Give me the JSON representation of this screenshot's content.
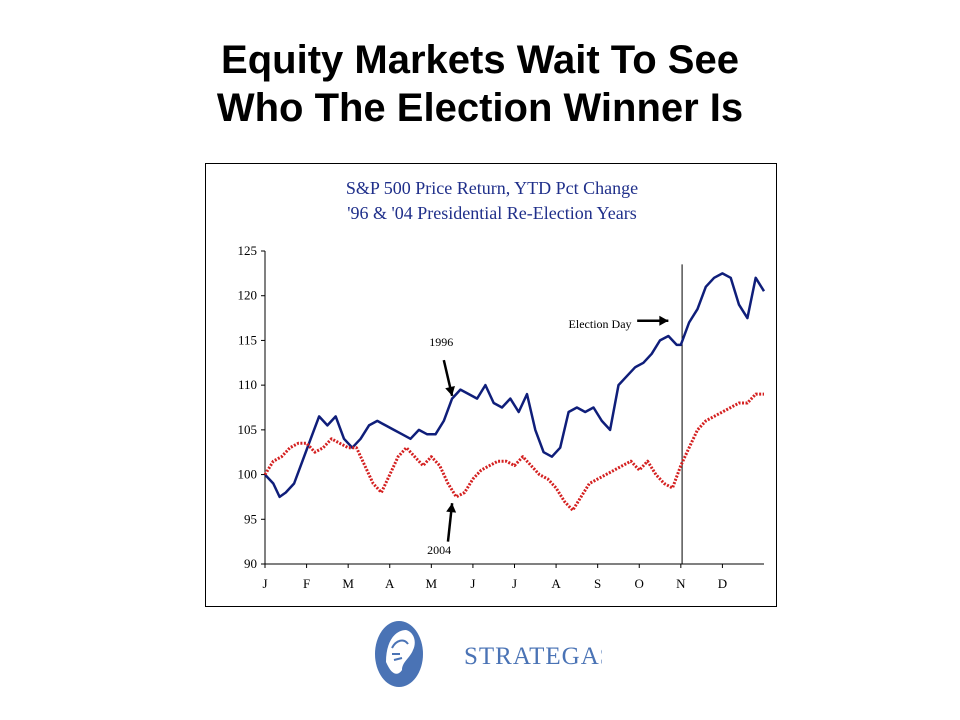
{
  "slide": {
    "title_line1": "Equity Markets Wait To See",
    "title_line2": "Who The Election Winner Is"
  },
  "logo": {
    "text": "STRATEGAS",
    "color": "#4a73b5"
  },
  "chart_data": {
    "type": "line",
    "title_line1": "S&P 500 Price Return, YTD Pct Change",
    "title_line2": "'96 & '04 Presidential Re-Election Years",
    "title_color": "#1f2f8a",
    "ylim": [
      90,
      125
    ],
    "yticks": [
      90,
      95,
      100,
      105,
      110,
      115,
      120,
      125
    ],
    "xticks": [
      "J",
      "F",
      "M",
      "A",
      "M",
      "J",
      "J",
      "A",
      "S",
      "O",
      "N",
      "D"
    ],
    "xlim": [
      0,
      12
    ],
    "grid": false,
    "annotations": {
      "election_day": {
        "label": "Election Day",
        "x": 10.03
      },
      "label_1996": "1996",
      "label_2004": "2004"
    },
    "series": [
      {
        "name": "1996",
        "color": "#0f1e7a",
        "x": [
          0,
          0.2,
          0.35,
          0.5,
          0.7,
          0.9,
          1.1,
          1.3,
          1.5,
          1.7,
          1.9,
          2.1,
          2.3,
          2.5,
          2.7,
          2.9,
          3.1,
          3.3,
          3.5,
          3.7,
          3.9,
          4.1,
          4.3,
          4.5,
          4.7,
          4.9,
          5.1,
          5.3,
          5.5,
          5.7,
          5.9,
          6.1,
          6.3,
          6.5,
          6.7,
          6.9,
          7.1,
          7.3,
          7.5,
          7.7,
          7.9,
          8.1,
          8.3,
          8.5,
          8.7,
          8.9,
          9.1,
          9.3,
          9.5,
          9.7,
          9.9,
          10.0,
          10.2,
          10.4,
          10.6,
          10.8,
          11.0,
          11.2,
          11.4,
          11.6,
          11.8,
          12.0
        ],
        "values": [
          100,
          99,
          97.5,
          98,
          99,
          101.5,
          104,
          106.5,
          105.5,
          106.5,
          104,
          103,
          104,
          105.5,
          106,
          105.5,
          105,
          104.5,
          104,
          105,
          104.5,
          104.5,
          106,
          108.5,
          109.5,
          109,
          108.5,
          110,
          108,
          107.5,
          108.5,
          107,
          109,
          105,
          102.5,
          102,
          103,
          107,
          107.5,
          107,
          107.5,
          106,
          105,
          110,
          111,
          112,
          112.5,
          113.5,
          115,
          115.5,
          114.5,
          114.5,
          117,
          118.5,
          121,
          122,
          122.5,
          122,
          119,
          117.5,
          122,
          120.5
        ]
      },
      {
        "name": "2004",
        "color": "#d42020",
        "x": [
          0,
          0.2,
          0.4,
          0.6,
          0.8,
          1.0,
          1.2,
          1.4,
          1.6,
          1.8,
          2.0,
          2.2,
          2.4,
          2.6,
          2.8,
          3.0,
          3.2,
          3.4,
          3.6,
          3.8,
          4.0,
          4.2,
          4.4,
          4.6,
          4.8,
          5.0,
          5.2,
          5.4,
          5.6,
          5.8,
          6.0,
          6.2,
          6.4,
          6.6,
          6.8,
          7.0,
          7.2,
          7.4,
          7.6,
          7.8,
          8.0,
          8.2,
          8.4,
          8.6,
          8.8,
          9.0,
          9.2,
          9.4,
          9.6,
          9.8,
          10.0,
          10.2,
          10.4,
          10.6,
          10.8,
          11.0,
          11.2,
          11.4,
          11.6,
          11.8,
          12.0
        ],
        "values": [
          100,
          101.5,
          102,
          103,
          103.5,
          103.5,
          102.5,
          103,
          104,
          103.5,
          103,
          103,
          101,
          99,
          98,
          100,
          102,
          103,
          102,
          101,
          102,
          101,
          99,
          97.5,
          98,
          99.5,
          100.5,
          101,
          101.5,
          101.5,
          101,
          102,
          101,
          100,
          99.5,
          98.5,
          97,
          96,
          97.5,
          99,
          99.5,
          100,
          100.5,
          101,
          101.5,
          100.5,
          101.5,
          100,
          99,
          98.5,
          101,
          103,
          105,
          106,
          106.5,
          107,
          107.5,
          108,
          108,
          109,
          109
        ]
      }
    ]
  }
}
